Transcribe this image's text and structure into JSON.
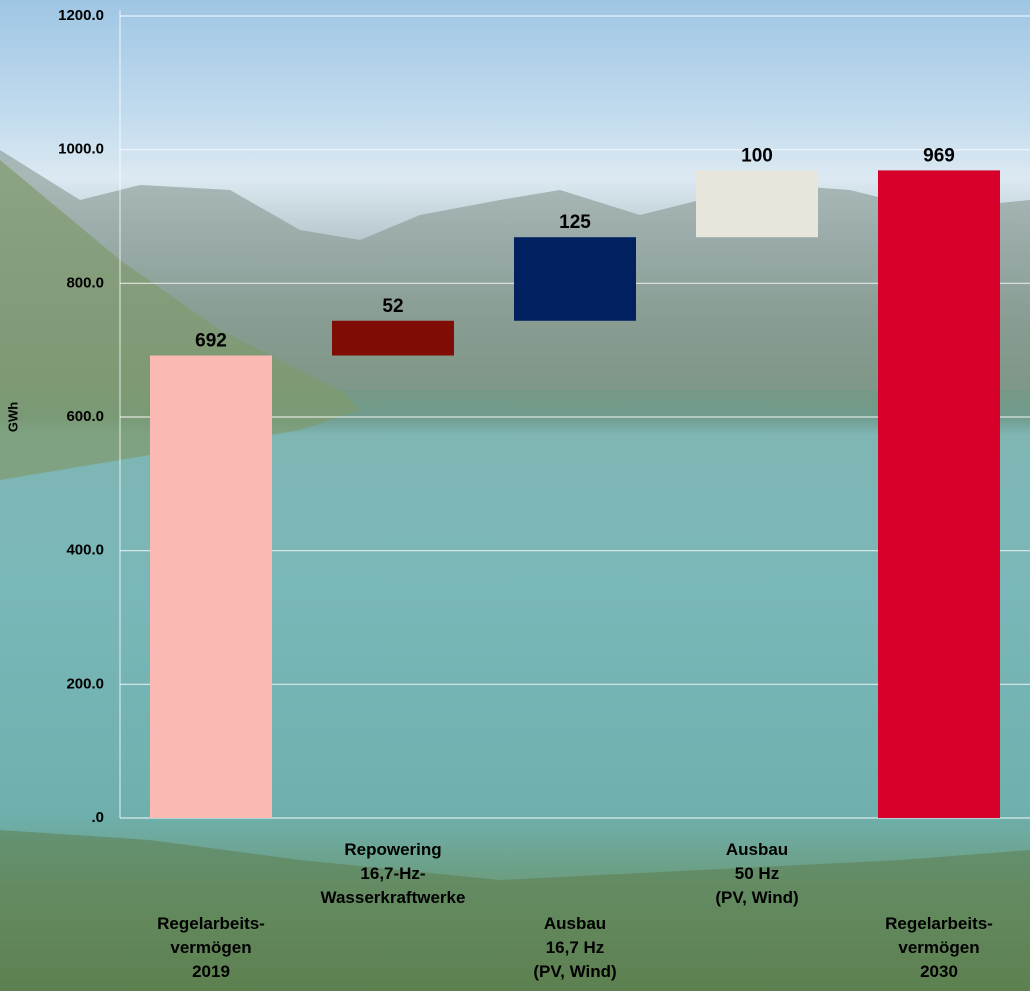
{
  "chart_data": {
    "type": "waterfall",
    "y_label": "GWh",
    "categories": [
      [
        "Regelarbeits-",
        "vermögen",
        "2019"
      ],
      [
        "Repowering",
        "16,7-Hz-",
        "Wasserkraftwerke"
      ],
      [
        "Ausbau",
        "16,7 Hz",
        "(PV, Wind)"
      ],
      [
        "Ausbau",
        "50 Hz",
        "(PV, Wind)"
      ],
      [
        "Regelarbeits-",
        "vermögen",
        "2030"
      ]
    ],
    "values": [
      692,
      52,
      125,
      100,
      969
    ],
    "measure": [
      "absolute",
      "relative",
      "relative",
      "relative",
      "total"
    ],
    "colors": [
      "#fbb9b4",
      "#7f0c05",
      "#002060",
      "#e8e6dc",
      "#d6002a"
    ],
    "ylim": [
      0,
      1200
    ],
    "yticks": [
      {
        "value": 0,
        "label": ".0"
      },
      {
        "value": 200,
        "label": "200.0"
      },
      {
        "value": 400,
        "label": "400.0"
      },
      {
        "value": 600,
        "label": "600.0"
      },
      {
        "value": 800,
        "label": "800.0"
      },
      {
        "value": 1000,
        "label": "1000.0"
      },
      {
        "value": 1200,
        "label": "1200.0"
      }
    ],
    "grid": true
  }
}
